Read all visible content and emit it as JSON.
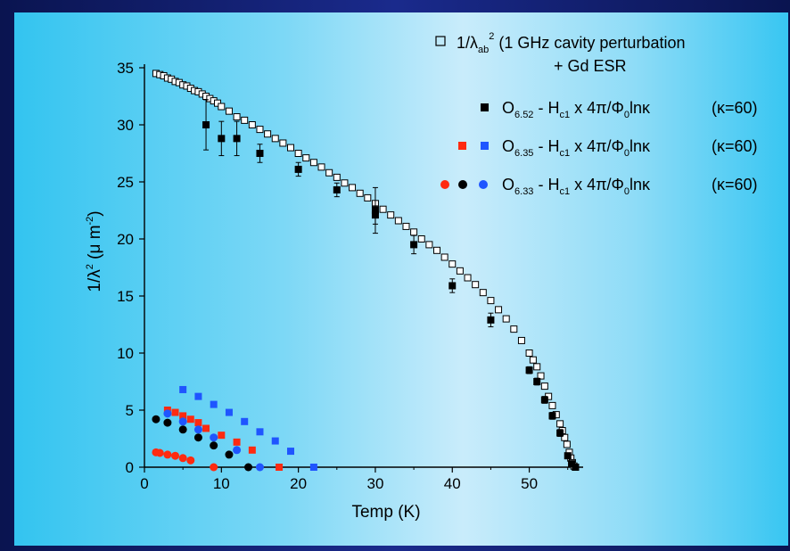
{
  "chart_data": {
    "type": "scatter",
    "xlabel": "Temp (K)",
    "ylabel_parts": [
      "1/λ",
      "2",
      " (μ m",
      "-2",
      ")"
    ],
    "xlim": [
      0,
      57
    ],
    "ylim": [
      0,
      35
    ],
    "xticks": [
      0,
      10,
      20,
      30,
      40,
      50
    ],
    "yticks": [
      0,
      5,
      10,
      15,
      20,
      25,
      30,
      35
    ],
    "legend": [
      {
        "line1": {
          "pre": "1/λ",
          "sub": "ab",
          "sup": "2",
          "post": "  (1 GHz cavity perturbation"
        },
        "line2": "+ Gd ESR"
      },
      {
        "name": {
          "main": "O",
          "sub": "6.52"
        },
        "formula": "H",
        "fsub": "c1",
        "mid": " x 4π/Φ",
        "msub": "0",
        "tail": "lnκ",
        "kappa": "(κ=60)"
      },
      {
        "name": {
          "main": "O",
          "sub": "6.35"
        },
        "formula": "H",
        "fsub": "c1",
        "mid": " x 4π/Φ",
        "msub": "0",
        "tail": "lnκ",
        "kappa": "(κ=60)"
      },
      {
        "name": {
          "main": "O",
          "sub": "6.33"
        },
        "formula": "H",
        "fsub": "c1",
        "mid": " x 4π/Φ",
        "msub": "0",
        "tail": "lnκ",
        "kappa": "(κ=60)"
      }
    ],
    "colors": {
      "black": "#000000",
      "red": "#ff2a10",
      "blue": "#1f55ff"
    },
    "series": [
      {
        "id": "cavity",
        "marker": "open-square",
        "color": "#000000",
        "points": [
          [
            1.5,
            34.5
          ],
          [
            2,
            34.4
          ],
          [
            2.5,
            34.3
          ],
          [
            3,
            34.1
          ],
          [
            3.5,
            34.0
          ],
          [
            4,
            33.8
          ],
          [
            4.5,
            33.7
          ],
          [
            5,
            33.5
          ],
          [
            5.5,
            33.4
          ],
          [
            6,
            33.2
          ],
          [
            6.5,
            33.0
          ],
          [
            7,
            32.9
          ],
          [
            7.5,
            32.7
          ],
          [
            8,
            32.5
          ],
          [
            8.5,
            32.3
          ],
          [
            9,
            32.1
          ],
          [
            9.5,
            31.9
          ],
          [
            10,
            31.6
          ],
          [
            11,
            31.2
          ],
          [
            12,
            30.7
          ],
          [
            13,
            30.4
          ],
          [
            14,
            30.0
          ],
          [
            15,
            29.6
          ],
          [
            16,
            29.2
          ],
          [
            17,
            28.8
          ],
          [
            18,
            28.4
          ],
          [
            19,
            28.0
          ],
          [
            20,
            27.5
          ],
          [
            21,
            27.1
          ],
          [
            22,
            26.7
          ],
          [
            23,
            26.3
          ],
          [
            24,
            25.8
          ],
          [
            25,
            25.4
          ],
          [
            26,
            24.9
          ],
          [
            27,
            24.5
          ],
          [
            28,
            24.0
          ],
          [
            29,
            23.6
          ],
          [
            30,
            23.1
          ],
          [
            31,
            22.6
          ],
          [
            32,
            22.1
          ],
          [
            33,
            21.6
          ],
          [
            34,
            21.1
          ],
          [
            35,
            20.6
          ],
          [
            36,
            20.0
          ],
          [
            37,
            19.5
          ],
          [
            38,
            19.0
          ],
          [
            39,
            18.4
          ],
          [
            40,
            17.8
          ],
          [
            41,
            17.2
          ],
          [
            42,
            16.6
          ],
          [
            43,
            16.0
          ],
          [
            44,
            15.3
          ],
          [
            45,
            14.6
          ],
          [
            46,
            13.8
          ],
          [
            47,
            13.0
          ],
          [
            48,
            12.1
          ],
          [
            49,
            11.1
          ],
          [
            50,
            10.0
          ],
          [
            50.5,
            9.4
          ],
          [
            51,
            8.8
          ],
          [
            51.5,
            8.0
          ],
          [
            52,
            7.1
          ],
          [
            52.5,
            6.2
          ],
          [
            53,
            5.4
          ],
          [
            53.5,
            4.6
          ],
          [
            54,
            3.8
          ],
          [
            54.3,
            3.2
          ],
          [
            54.6,
            2.6
          ],
          [
            54.9,
            2.0
          ],
          [
            55.2,
            1.3
          ],
          [
            55.4,
            0.8
          ],
          [
            55.6,
            0.4
          ],
          [
            55.8,
            0.1
          ],
          [
            56,
            0
          ]
        ]
      },
      {
        "id": "O6.52",
        "marker": "filled-square",
        "color": "#000000",
        "points": [
          [
            8,
            30.0
          ],
          [
            10,
            28.8
          ],
          [
            12,
            28.8
          ],
          [
            15,
            27.5
          ],
          [
            20,
            26.1
          ],
          [
            25,
            24.3
          ],
          [
            30,
            22.5
          ],
          [
            30,
            22.1
          ],
          [
            35,
            19.5
          ],
          [
            40,
            15.9
          ],
          [
            45,
            12.9
          ],
          [
            50,
            8.5
          ],
          [
            51,
            7.5
          ],
          [
            52,
            5.9
          ],
          [
            53,
            4.5
          ],
          [
            54,
            3.0
          ],
          [
            55,
            1.0
          ],
          [
            55.5,
            0.3
          ],
          [
            56,
            0
          ]
        ],
        "errors": [
          [
            8,
            2.2
          ],
          [
            10,
            1.5
          ],
          [
            12,
            1.5
          ],
          [
            15,
            0.8
          ],
          [
            20,
            0.6
          ],
          [
            25,
            0.6
          ],
          [
            30,
            2.0
          ],
          [
            30,
            0.8
          ],
          [
            35,
            0.8
          ],
          [
            40,
            0.6
          ],
          [
            45,
            0.6
          ],
          [
            50,
            0.3
          ],
          [
            51,
            0.3
          ],
          [
            52,
            0.3
          ],
          [
            53,
            0.3
          ],
          [
            54,
            0.3
          ],
          [
            55,
            0.2
          ],
          [
            55.5,
            0.2
          ],
          [
            56,
            0.1
          ]
        ]
      },
      {
        "id": "O6.35-blue",
        "marker": "filled-square",
        "color": "#1f55ff",
        "points": [
          [
            5,
            6.8
          ],
          [
            7,
            6.2
          ],
          [
            9,
            5.5
          ],
          [
            11,
            4.8
          ],
          [
            13,
            4.0
          ],
          [
            15,
            3.1
          ],
          [
            17,
            2.3
          ],
          [
            19,
            1.4
          ],
          [
            22,
            0
          ]
        ]
      },
      {
        "id": "O6.35-red",
        "marker": "filled-square",
        "color": "#ff2a10",
        "points": [
          [
            3,
            5.0
          ],
          [
            4,
            4.8
          ],
          [
            5,
            4.5
          ],
          [
            6,
            4.2
          ],
          [
            7,
            3.9
          ],
          [
            8,
            3.4
          ],
          [
            10,
            2.8
          ],
          [
            12,
            2.2
          ],
          [
            14,
            1.5
          ],
          [
            17.5,
            0
          ]
        ]
      },
      {
        "id": "O6.33-black",
        "marker": "circle",
        "color": "#000000",
        "points": [
          [
            1.5,
            4.2
          ],
          [
            3,
            3.9
          ],
          [
            5,
            3.3
          ],
          [
            7,
            2.6
          ],
          [
            9,
            1.9
          ],
          [
            11,
            1.1
          ],
          [
            13.5,
            0
          ]
        ]
      },
      {
        "id": "O6.33-blue",
        "marker": "circle",
        "color": "#1f55ff",
        "points": [
          [
            3,
            4.7
          ],
          [
            5,
            4.0
          ],
          [
            7,
            3.3
          ],
          [
            9,
            2.6
          ],
          [
            12,
            1.5
          ],
          [
            15,
            0
          ]
        ]
      },
      {
        "id": "O6.33-red",
        "marker": "circle",
        "color": "#ff2a10",
        "points": [
          [
            1.5,
            1.3
          ],
          [
            2,
            1.25
          ],
          [
            3,
            1.1
          ],
          [
            4,
            1.0
          ],
          [
            5,
            0.8
          ],
          [
            6,
            0.6
          ],
          [
            9,
            0
          ]
        ]
      }
    ]
  }
}
